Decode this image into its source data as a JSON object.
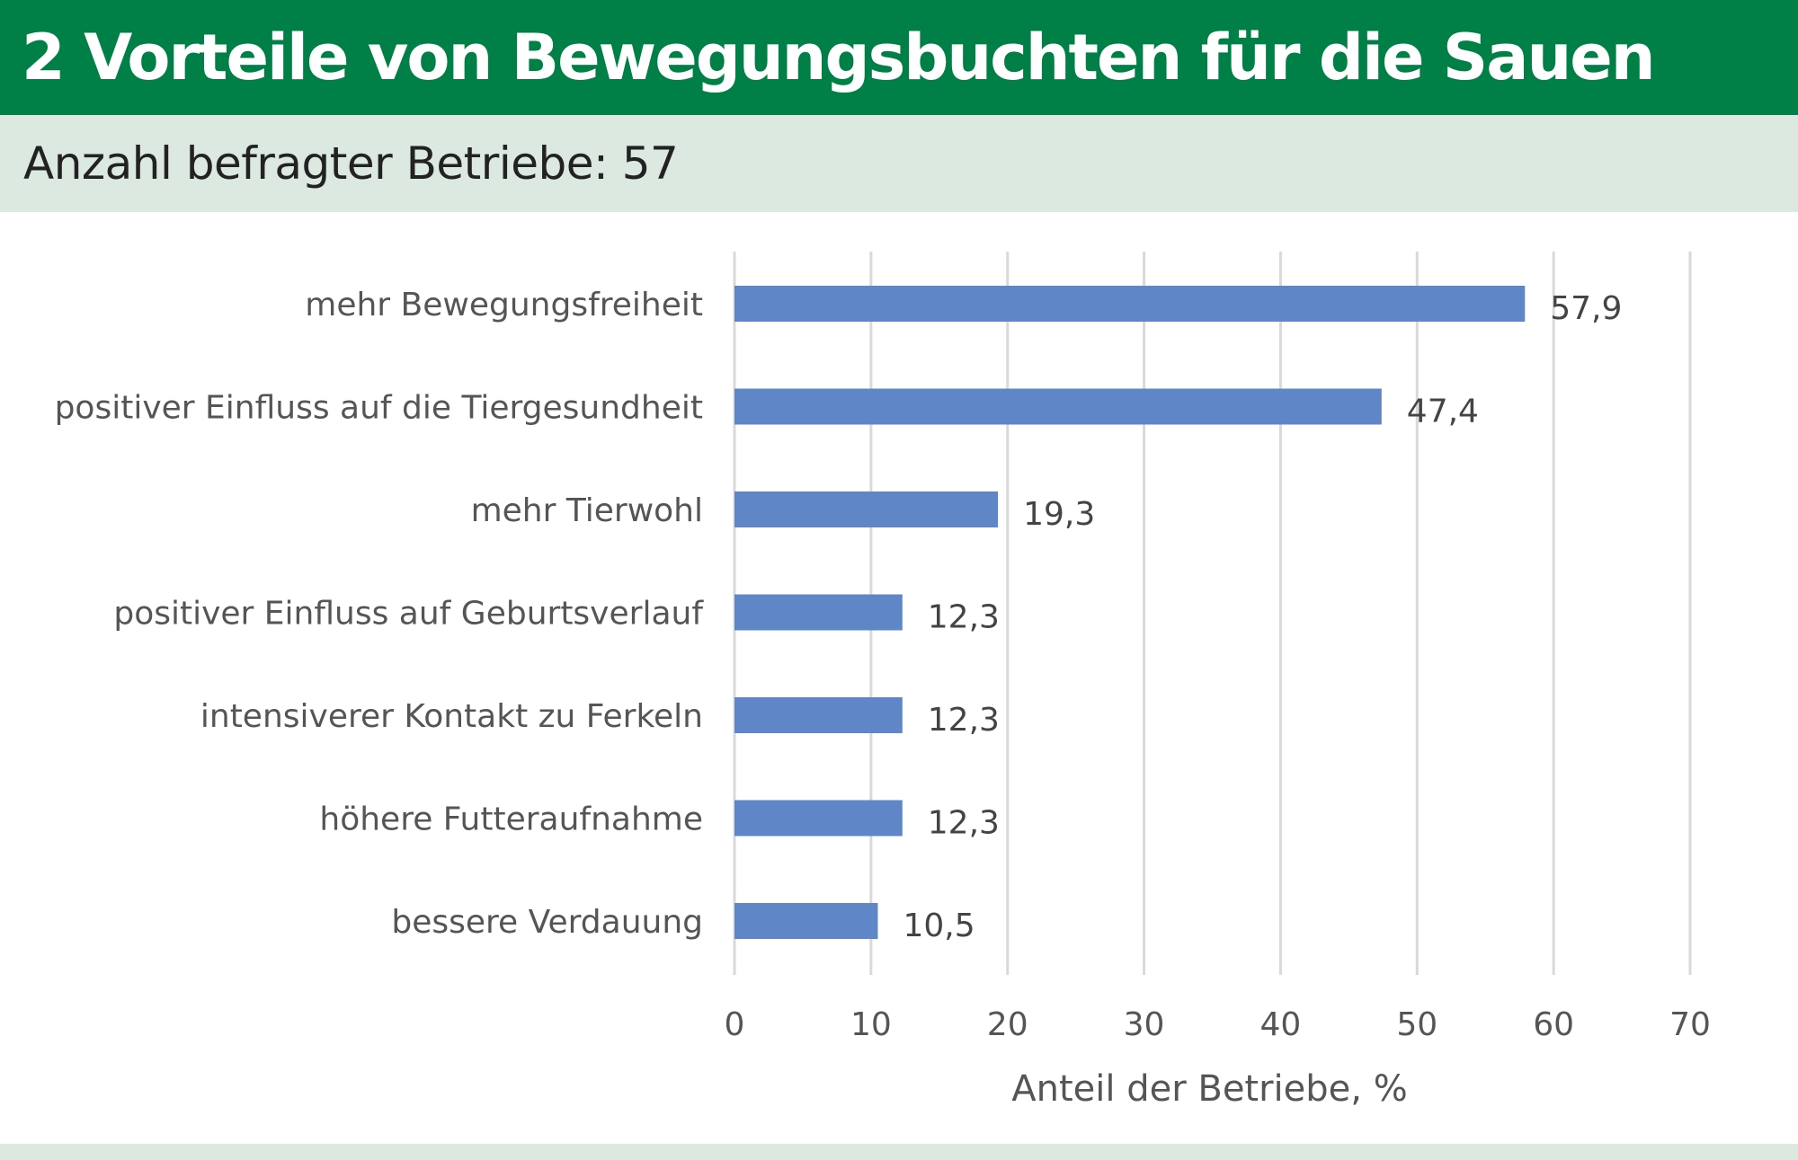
{
  "header": {
    "title": "2 Vorteile von Bewegungsbuchten für die Sauen",
    "subtitle": "Anzahl befragter Betriebe: 57"
  },
  "colors": {
    "title_band": "#008046",
    "subtitle_band": "#dbe9e0",
    "bar": "#5f87c7",
    "grid": "#d9d9d9"
  },
  "chart_data": {
    "type": "bar",
    "orientation": "horizontal",
    "title": "2 Vorteile von Bewegungsbuchten für die Sauen",
    "subtitle": "Anzahl befragter Betriebe: 57",
    "xlabel": "Anteil der Betriebe, %",
    "ylabel": "",
    "xlim": [
      0,
      70
    ],
    "x_ticks": [
      0,
      10,
      20,
      30,
      40,
      50,
      60,
      70
    ],
    "grid": "vertical",
    "categories": [
      "mehr Bewegungsfreiheit",
      "positiver Einfluss auf die Tiergesundheit",
      "mehr Tierwohl",
      "positiver Einfluss auf Geburtsverlauf",
      "intensiverer Kontakt zu Ferkeln",
      "höhere Futteraufnahme",
      "bessere Verdauung"
    ],
    "values": [
      57.9,
      47.4,
      19.3,
      12.3,
      12.3,
      12.3,
      10.5
    ],
    "value_labels": [
      "57,9",
      "47,4",
      "19,3",
      "12,3",
      "12,3",
      "12,3",
      "10,5"
    ]
  }
}
